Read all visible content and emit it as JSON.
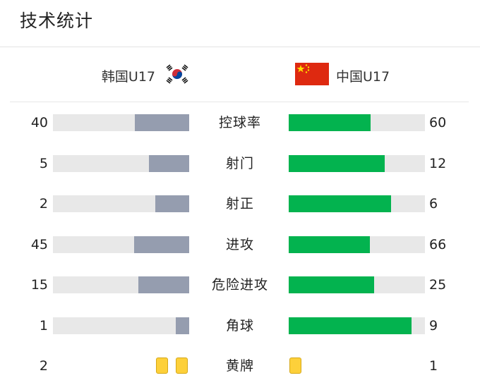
{
  "header": {
    "title": "技术统计"
  },
  "teams": {
    "home": {
      "name": "韩国U17",
      "flag_icon": "south-korea-flag-icon"
    },
    "away": {
      "name": "中国U17",
      "flag_icon": "china-flag-icon"
    }
  },
  "colors": {
    "home_bar": "#959daf",
    "away_bar": "#03b34f",
    "track": "#e8e8e8",
    "yellow_card": "#fdd03a"
  },
  "stats": [
    {
      "label": "控球率",
      "home": "40",
      "away": "60",
      "home_fill": 0.4,
      "away_fill": 0.6
    },
    {
      "label": "射门",
      "home": "5",
      "away": "12",
      "home_fill": 0.294,
      "away_fill": 0.706
    },
    {
      "label": "射正",
      "home": "2",
      "away": "6",
      "home_fill": 0.25,
      "away_fill": 0.75
    },
    {
      "label": "进攻",
      "home": "45",
      "away": "66",
      "home_fill": 0.405,
      "away_fill": 0.595
    },
    {
      "label": "危险进攻",
      "home": "15",
      "away": "25",
      "home_fill": 0.375,
      "away_fill": 0.625
    },
    {
      "label": "角球",
      "home": "1",
      "away": "9",
      "home_fill": 0.1,
      "away_fill": 0.9
    }
  ],
  "cards": {
    "label": "黄牌",
    "home": "2",
    "away": "1",
    "home_count": 2,
    "away_count": 1
  }
}
